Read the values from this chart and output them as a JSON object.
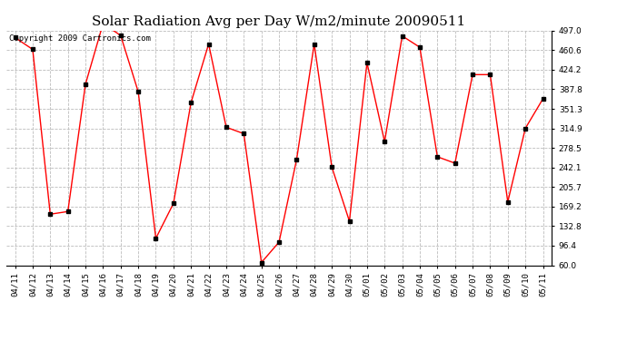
{
  "title": "Solar Radiation Avg per Day W/m2/minute 20090511",
  "copyright": "Copyright 2009 Cartronics.com",
  "labels": [
    "04/11",
    "04/12",
    "04/13",
    "04/14",
    "04/15",
    "04/16",
    "04/17",
    "04/18",
    "04/19",
    "04/20",
    "04/21",
    "04/22",
    "04/23",
    "04/24",
    "04/25",
    "04/26",
    "04/27",
    "04/28",
    "04/29",
    "04/30",
    "05/01",
    "05/02",
    "05/03",
    "05/04",
    "05/05",
    "05/06",
    "05/07",
    "05/08",
    "05/09",
    "05/10",
    "05/11"
  ],
  "values": [
    484,
    462,
    155,
    160,
    397,
    510,
    488,
    383,
    110,
    175,
    363,
    472,
    317,
    305,
    65,
    103,
    257,
    472,
    243,
    142,
    437,
    290,
    487,
    466,
    262,
    250,
    415,
    415,
    178,
    315,
    370
  ],
  "ymin": 60.0,
  "ymax": 497.0,
  "yticks": [
    60.0,
    96.4,
    132.8,
    169.2,
    205.7,
    242.1,
    278.5,
    314.9,
    351.3,
    387.8,
    424.2,
    460.6,
    497.0
  ],
  "line_color": "#ff0000",
  "marker_color": "#000000",
  "bg_color": "#ffffff",
  "grid_color": "#bbbbbb",
  "title_fontsize": 11,
  "copyright_fontsize": 6.5,
  "tick_fontsize": 6.5,
  "ylabel_fontsize": 7
}
